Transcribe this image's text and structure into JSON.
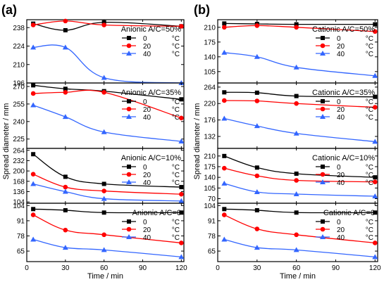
{
  "figure": {
    "panel_letters": [
      "(a)",
      "(b)"
    ],
    "ylabel": "Spread diameter / mm",
    "xlabel": "Time / min",
    "colors": {
      "0": "#000000",
      "20": "#ff0000",
      "40": "#3366ff"
    }
  },
  "chart_data": [
    {
      "type": "line",
      "panel": "(a)",
      "row": 0,
      "title": "Anionic  A/C=50%",
      "x": [
        5,
        30,
        60,
        120
      ],
      "xlim": [
        0,
        122
      ],
      "xticks": [
        0,
        30,
        60,
        90,
        120
      ],
      "ylim": [
        196,
        244
      ],
      "yticks": [
        196,
        210,
        224,
        238
      ],
      "series": [
        {
          "name": "0",
          "unit": "°C",
          "marker": "square",
          "values": [
            241,
            236,
            242,
            239
          ]
        },
        {
          "name": "20",
          "unit": "°C",
          "marker": "circle",
          "values": [
            240,
            243,
            240,
            239
          ]
        },
        {
          "name": "40",
          "unit": "°C",
          "marker": "triangle",
          "values": [
            223,
            223,
            200,
            196
          ]
        }
      ]
    },
    {
      "type": "line",
      "panel": "(a)",
      "row": 1,
      "title": "Anionic  A/C=35%",
      "x": [
        5,
        30,
        60,
        120
      ],
      "xlim": [
        0,
        122
      ],
      "xticks": [
        0,
        30,
        60,
        90,
        120
      ],
      "ylim": [
        217,
        273
      ],
      "yticks": [
        225,
        240,
        255,
        270
      ],
      "series": [
        {
          "name": "0",
          "unit": "°C",
          "marker": "square",
          "values": [
            271,
            268,
            266,
            259
          ]
        },
        {
          "name": "20",
          "unit": "°C",
          "marker": "circle",
          "values": [
            264,
            265,
            265,
            243
          ]
        },
        {
          "name": "40",
          "unit": "°C",
          "marker": "triangle",
          "values": [
            254,
            244,
            231,
            223
          ]
        }
      ]
    },
    {
      "type": "line",
      "panel": "(a)",
      "row": 2,
      "title": "Anionic  A/C=10%",
      "x": [
        5,
        30,
        60,
        120
      ],
      "xlim": [
        0,
        122
      ],
      "xticks": [
        0,
        30,
        60,
        90,
        120
      ],
      "ylim": [
        100,
        270
      ],
      "yticks": [
        104,
        136,
        168,
        200,
        232,
        264
      ],
      "series": [
        {
          "name": "0",
          "unit": "°C",
          "marker": "square",
          "values": [
            252,
            182,
            160,
            150
          ]
        },
        {
          "name": "20",
          "unit": "°C",
          "marker": "circle",
          "values": [
            190,
            150,
            138,
            128
          ]
        },
        {
          "name": "40",
          "unit": "°C",
          "marker": "triangle",
          "values": [
            160,
            136,
            114,
            107
          ]
        }
      ]
    },
    {
      "type": "line",
      "panel": "(a)",
      "row": 3,
      "title": "Anionic  A/C=0",
      "x": [
        5,
        30,
        60,
        120
      ],
      "xlim": [
        0,
        122
      ],
      "xticks": [
        0,
        30,
        60,
        90,
        120
      ],
      "ylim": [
        56,
        106
      ],
      "yticks": [
        65,
        78,
        91,
        104
      ],
      "series": [
        {
          "name": "0",
          "unit": "°C",
          "marker": "square",
          "values": [
            101,
            100,
            98,
            98
          ]
        },
        {
          "name": "20",
          "unit": "°C",
          "marker": "circle",
          "values": [
            96,
            83,
            79,
            72
          ]
        },
        {
          "name": "40",
          "unit": "°C",
          "marker": "triangle",
          "values": [
            75,
            68,
            66,
            60
          ]
        }
      ]
    },
    {
      "type": "line",
      "panel": "(b)",
      "row": 0,
      "title": "Cationic  A/C=50%",
      "x": [
        5,
        30,
        60,
        120
      ],
      "xlim": [
        0,
        122
      ],
      "xticks": [
        0,
        30,
        60,
        90,
        120
      ],
      "ylim": [
        78,
        228
      ],
      "yticks": [
        105,
        140,
        175,
        210
      ],
      "series": [
        {
          "name": "0",
          "unit": "°C",
          "marker": "square",
          "values": [
            219,
            218,
            217,
            217
          ]
        },
        {
          "name": "20",
          "unit": "°C",
          "marker": "circle",
          "values": [
            210,
            214,
            210,
            200
          ]
        },
        {
          "name": "40",
          "unit": "°C",
          "marker": "triangle",
          "values": [
            150,
            140,
            115,
            95
          ]
        }
      ]
    },
    {
      "type": "line",
      "panel": "(b)",
      "row": 1,
      "title": "Cationic  A/C=35%",
      "x": [
        5,
        30,
        60,
        120
      ],
      "xlim": [
        0,
        122
      ],
      "xticks": [
        0,
        30,
        60,
        90,
        120
      ],
      "ylim": [
        100,
        275
      ],
      "yticks": [
        132,
        176,
        220,
        264
      ],
      "series": [
        {
          "name": "0",
          "unit": "°C",
          "marker": "square",
          "values": [
            250,
            249,
            240,
            238
          ]
        },
        {
          "name": "20",
          "unit": "°C",
          "marker": "circle",
          "values": [
            228,
            227,
            220,
            210
          ]
        },
        {
          "name": "40",
          "unit": "°C",
          "marker": "triangle",
          "values": [
            180,
            160,
            140,
            118
          ]
        }
      ]
    },
    {
      "type": "line",
      "panel": "(b)",
      "row": 2,
      "title": "Cationic  A/C=10%",
      "x": [
        5,
        30,
        60,
        120
      ],
      "xlim": [
        0,
        122
      ],
      "xticks": [
        0,
        30,
        60,
        90,
        120
      ],
      "ylim": [
        55,
        235
      ],
      "yticks": [
        70,
        105,
        140,
        175,
        210
      ],
      "series": [
        {
          "name": "0",
          "unit": "°C",
          "marker": "square",
          "values": [
            210,
            172,
            152,
            140
          ]
        },
        {
          "name": "20",
          "unit": "°C",
          "marker": "circle",
          "values": [
            170,
            145,
            130,
            125
          ]
        },
        {
          "name": "40",
          "unit": "°C",
          "marker": "triangle",
          "values": [
            120,
            92,
            85,
            78
          ]
        }
      ]
    },
    {
      "type": "line",
      "panel": "(b)",
      "row": 3,
      "title": "Cationic  A/C=0",
      "x": [
        5,
        30,
        60,
        120
      ],
      "xlim": [
        0,
        122
      ],
      "xticks": [
        0,
        30,
        60,
        90,
        120
      ],
      "ylim": [
        56,
        106
      ],
      "yticks": [
        65,
        78,
        91,
        104
      ],
      "series": [
        {
          "name": "0",
          "unit": "°C",
          "marker": "square",
          "values": [
            101,
            100,
            98,
            98
          ]
        },
        {
          "name": "20",
          "unit": "°C",
          "marker": "circle",
          "values": [
            96,
            84,
            79,
            72
          ]
        },
        {
          "name": "40",
          "unit": "°C",
          "marker": "triangle",
          "values": [
            75,
            68,
            66,
            60
          ]
        }
      ]
    }
  ]
}
